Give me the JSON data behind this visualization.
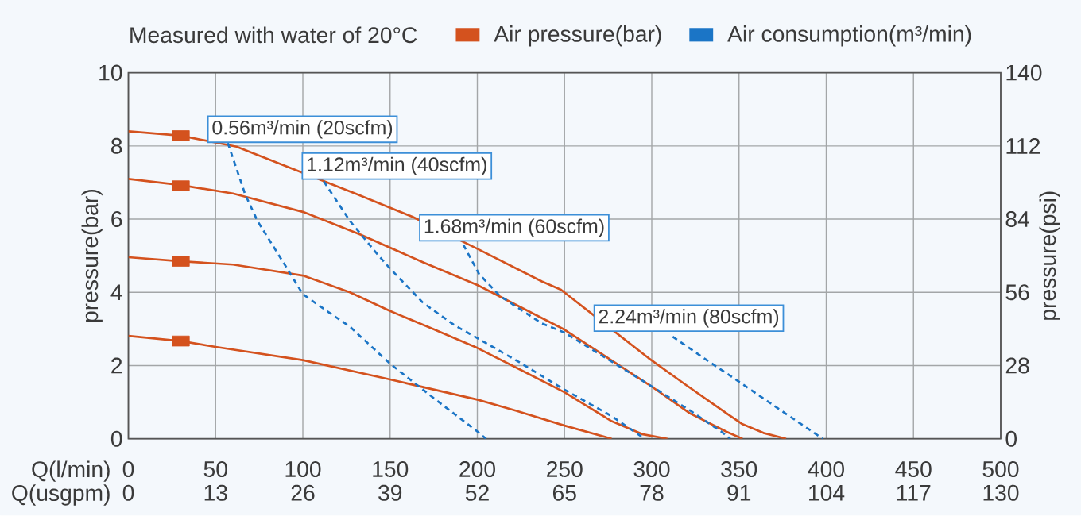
{
  "chart_data": {
    "type": "line",
    "annotations": [
      "Measured with water of 20°C",
      {
        "text": "0.56m³/min (20scfm)",
        "x": 57,
        "y": 8.08
      },
      {
        "text": "1.12m³/min (40scfm)",
        "x": 112,
        "y": 7.03
      },
      {
        "text": "1.68m³/min (60scfm)",
        "x": 192,
        "y": 5.3
      },
      {
        "text": "2.24m³/min (80scfm)",
        "x": 312,
        "y": 2.79
      }
    ],
    "xlabel": "Q(l/min)",
    "x2label": "Q(usgpm)",
    "ylabel": "pressure(bar)",
    "y2label": "pressure(psi)",
    "xlim": [
      0,
      500
    ],
    "xticks": [
      0,
      50,
      100,
      150,
      200,
      250,
      300,
      350,
      400,
      450,
      500
    ],
    "x2lim": [
      0,
      130
    ],
    "x2ticks": [
      0,
      13,
      26,
      39,
      52,
      65,
      78,
      91,
      104,
      117,
      130
    ],
    "ylim": [
      0,
      10
    ],
    "yticks": [
      0,
      2,
      4,
      6,
      8,
      10
    ],
    "y2lim": [
      0,
      140
    ],
    "y2ticks": [
      0,
      28,
      56,
      84,
      112,
      140
    ],
    "grid": true,
    "legend": "top",
    "series": [
      {
        "name": "Air pressure(bar)",
        "color": "#d4521e",
        "x": [
          0,
          30,
          62,
          98,
          130,
          163,
          200,
          237,
          248,
          298,
          319,
          343,
          352,
          364,
          377
        ],
        "values": [
          8.4,
          8.28,
          7.98,
          7.3,
          6.7,
          6.06,
          5.19,
          4.3,
          4.07,
          2.21,
          1.49,
          0.69,
          0.4,
          0.16,
          0
        ]
      },
      {
        "color": "#d4521e",
        "x": [
          0,
          30,
          60,
          100,
          133,
          169,
          200,
          250,
          298,
          322,
          343,
          352
        ],
        "values": [
          7.1,
          6.93,
          6.7,
          6.2,
          5.58,
          4.82,
          4.2,
          2.98,
          1.49,
          0.69,
          0.19,
          0
        ]
      },
      {
        "color": "#d4521e",
        "x": [
          0,
          30,
          60,
          100,
          127,
          150,
          175,
          200,
          222,
          250,
          277,
          295,
          309
        ],
        "values": [
          4.96,
          4.85,
          4.76,
          4.46,
          4.0,
          3.49,
          2.99,
          2.48,
          1.95,
          1.27,
          0.48,
          0.12,
          0
        ]
      },
      {
        "color": "#d4521e",
        "x": [
          0,
          30,
          50,
          100,
          150,
          200,
          222,
          250,
          277
        ],
        "values": [
          2.81,
          2.67,
          2.51,
          2.15,
          1.62,
          1.07,
          0.77,
          0.36,
          0
        ]
      },
      {
        "name": "Air consumption(m³/min)",
        "color": "#1b75c6",
        "line_style": "dashed",
        "x": [
          57,
          67,
          74,
          91,
          100,
          115,
          127,
          150,
          175,
          200,
          205
        ],
        "values": [
          8.08,
          6.67,
          5.95,
          4.65,
          3.95,
          3.45,
          3.06,
          2.05,
          1.11,
          0.2,
          0
        ]
      },
      {
        "color": "#1b75c6",
        "line_style": "dashed",
        "x": [
          112,
          127,
          142,
          150,
          169,
          187,
          200,
          222,
          250,
          277,
          296
        ],
        "values": [
          7.03,
          5.95,
          5.08,
          4.65,
          3.71,
          3.1,
          2.75,
          2.15,
          1.34,
          0.62,
          0
        ]
      },
      {
        "color": "#1b75c6",
        "line_style": "dashed",
        "x": [
          192,
          201,
          213,
          237,
          250,
          298,
          322,
          340,
          345
        ],
        "values": [
          5.3,
          4.5,
          3.9,
          3.15,
          2.9,
          1.49,
          0.77,
          0.19,
          0
        ]
      },
      {
        "color": "#1b75c6",
        "line_style": "dashed",
        "x": [
          312,
          330,
          349,
          373,
          398
        ],
        "values": [
          2.79,
          2.2,
          1.59,
          0.81,
          0
        ]
      },
      {
        "type": "scatter",
        "color": "#d4521e",
        "marker": "square",
        "x": [
          30,
          30,
          30,
          30
        ],
        "values": [
          8.28,
          6.91,
          4.85,
          2.67
        ]
      }
    ]
  }
}
